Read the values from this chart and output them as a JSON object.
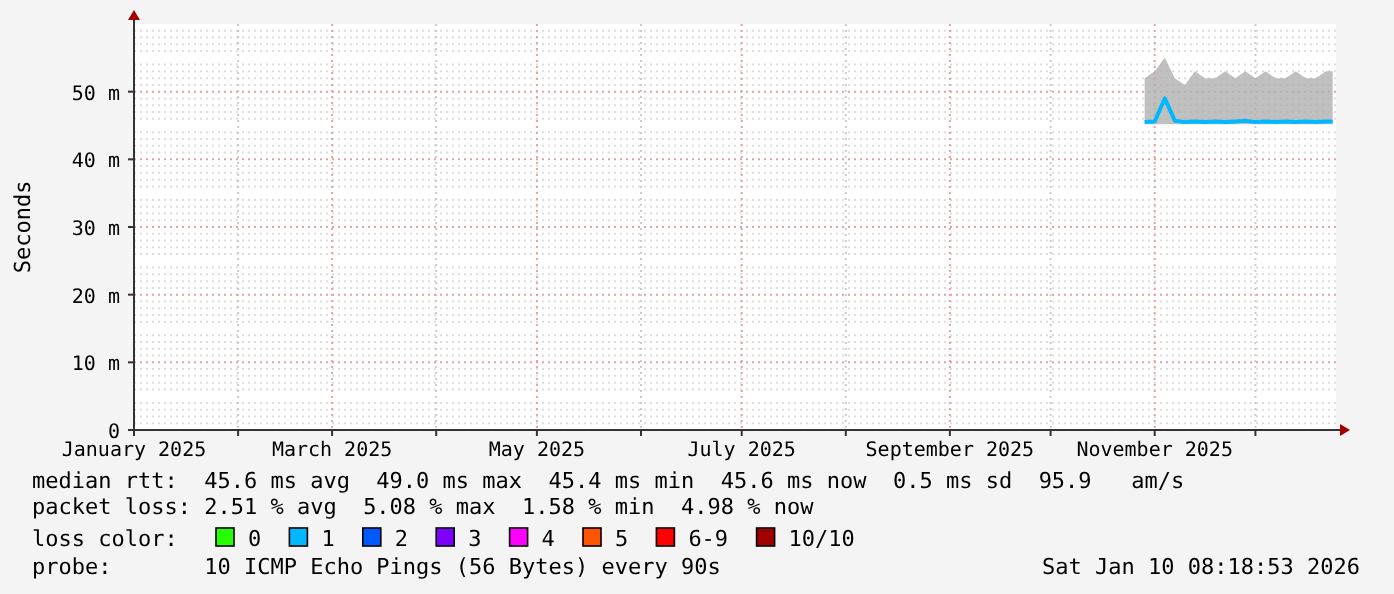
{
  "chart_data": {
    "type": "line",
    "ylabel": "Seconds",
    "legend_title": "loss color:",
    "legend": "bottom",
    "grid": true,
    "xlim": [
      "2025-01-01",
      "2025-12-25"
    ],
    "xticks": [
      {
        "value": "2025-01-01",
        "label": "January 2025"
      },
      {
        "value": "2025-02-01",
        "label": null
      },
      {
        "value": "2025-03-01",
        "label": "March 2025"
      },
      {
        "value": "2025-04-01",
        "label": null
      },
      {
        "value": "2025-05-01",
        "label": "May 2025"
      },
      {
        "value": "2025-06-01",
        "label": null
      },
      {
        "value": "2025-07-01",
        "label": "July 2025"
      },
      {
        "value": "2025-08-01",
        "label": null
      },
      {
        "value": "2025-09-01",
        "label": "September 2025"
      },
      {
        "value": "2025-10-01",
        "label": null
      },
      {
        "value": "2025-11-01",
        "label": "November 2025"
      },
      {
        "value": "2025-12-01",
        "label": null
      }
    ],
    "ylim": [
      0,
      60
    ],
    "yticks": [
      0,
      {
        "value": 10,
        "label": "10 m"
      },
      {
        "value": 20,
        "label": "20 m"
      },
      {
        "value": 30,
        "label": "30 m"
      },
      {
        "value": 40,
        "label": "40 m"
      },
      {
        "value": 50,
        "label": "50 m"
      }
    ],
    "x": [
      "2025-10-29",
      "2025-11-01",
      "2025-11-04",
      "2025-11-07",
      "2025-11-10",
      "2025-11-13",
      "2025-11-16",
      "2025-11-19",
      "2025-11-22",
      "2025-11-25",
      "2025-11-28",
      "2025-12-01",
      "2025-12-04",
      "2025-12-07",
      "2025-12-10",
      "2025-12-13",
      "2025-12-16",
      "2025-12-19",
      "2025-12-22",
      "2025-12-24"
    ],
    "series": [
      {
        "name": "0",
        "color": "#26ff00",
        "values": [
          null,
          null,
          null,
          null,
          null,
          null,
          null,
          null,
          null,
          null,
          null,
          null,
          null,
          null,
          null,
          null,
          null,
          null,
          null,
          null
        ]
      },
      {
        "name": "1",
        "color": "#00b8ff",
        "values": [
          45.5,
          45.6,
          49,
          45.7,
          45.5,
          45.6,
          45.5,
          45.6,
          45.5,
          45.6,
          45.7,
          45.5,
          45.6,
          45.5,
          45.6,
          45.5,
          45.6,
          45.5,
          45.6,
          45.6
        ],
        "lower": [
          45.2,
          45.2,
          45.2,
          45.2,
          45.2,
          45.2,
          45.2,
          45.2,
          45.2,
          45.2,
          45.2,
          45.2,
          45.2,
          45.2,
          45.2,
          45.2,
          45.2,
          45.2,
          45.2,
          45.2
        ],
        "upper": [
          52,
          53,
          55,
          52,
          51,
          53,
          52,
          52,
          53,
          52,
          53,
          52,
          53,
          52,
          52,
          53,
          52,
          52,
          53,
          53
        ]
      },
      {
        "name": "2",
        "color": "#0059ff",
        "values": [
          null,
          null,
          null,
          null,
          null,
          null,
          null,
          null,
          null,
          null,
          null,
          null,
          null,
          null,
          null,
          null,
          null,
          null,
          null,
          null
        ]
      },
      {
        "name": "3",
        "color": "#7e00ff",
        "values": [
          null,
          null,
          null,
          null,
          null,
          null,
          null,
          null,
          null,
          null,
          null,
          null,
          null,
          null,
          null,
          null,
          null,
          null,
          null,
          null
        ]
      },
      {
        "name": "4",
        "color": "#ff00ff",
        "values": [
          null,
          null,
          null,
          null,
          null,
          null,
          null,
          null,
          null,
          null,
          null,
          null,
          null,
          null,
          null,
          null,
          null,
          null,
          null,
          null
        ]
      },
      {
        "name": "5",
        "color": "#ff5500",
        "values": [
          null,
          null,
          null,
          null,
          null,
          null,
          null,
          null,
          null,
          null,
          null,
          null,
          null,
          null,
          null,
          null,
          null,
          null,
          null,
          null
        ]
      },
      {
        "name": "6-9",
        "color": "#ff0000",
        "values": [
          null,
          null,
          null,
          null,
          null,
          null,
          null,
          null,
          null,
          null,
          null,
          null,
          null,
          null,
          null,
          null,
          null,
          null,
          null,
          null
        ]
      },
      {
        "name": "10/10",
        "color": "#a10000",
        "values": [
          null,
          null,
          null,
          null,
          null,
          null,
          null,
          null,
          null,
          null,
          null,
          null,
          null,
          null,
          null,
          null,
          null,
          null,
          null,
          null
        ]
      }
    ],
    "annotations": [
      "median rtt:  45.6 ms avg  49.0 ms max  45.4 ms min  45.6 ms now  0.5 ms sd  95.9   am/s",
      "packet loss: 2.51 % avg  5.08 % max  1.58 % min  4.98 % now",
      "probe:       10 ICMP Echo Pings (56 Bytes) every 90s",
      "Sat Jan 10 08:18:53 2026"
    ]
  }
}
